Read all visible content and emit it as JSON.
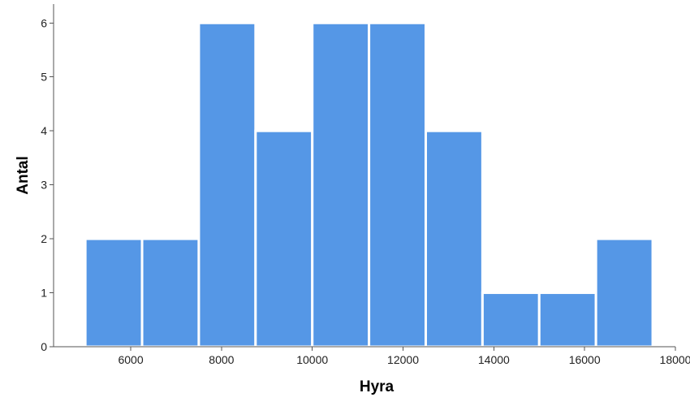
{
  "chart_data": {
    "type": "bar",
    "subtype": "histogram",
    "xlabel": "Hyra",
    "ylabel": "Antal",
    "xlim": [
      4300,
      18000
    ],
    "ylim": [
      0,
      6.35
    ],
    "x_ticks": [
      6000,
      8000,
      10000,
      12000,
      14000,
      16000,
      18000
    ],
    "y_ticks": [
      0,
      1,
      2,
      3,
      4,
      5,
      6
    ],
    "bin_edges": [
      5000,
      6250,
      7500,
      8750,
      10000,
      11250,
      12500,
      13750,
      15000,
      16250,
      17500
    ],
    "values": [
      2,
      2,
      6,
      4,
      6,
      6,
      4,
      1,
      1,
      2
    ],
    "grid": false,
    "bar_color": "#5597e6"
  }
}
